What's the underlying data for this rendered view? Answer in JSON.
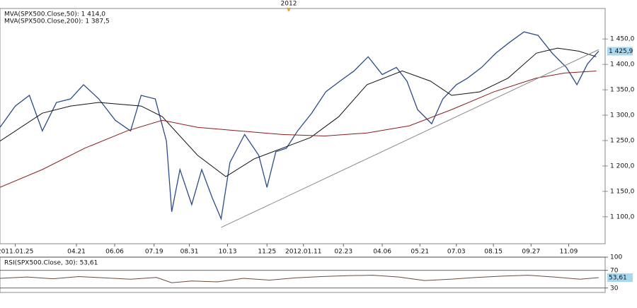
{
  "chart_data": [
    {
      "type": "line",
      "period_marker": {
        "label": "2012",
        "x": 46.5
      },
      "xlim": [
        -2.6,
        100.3
      ],
      "ylim": [
        1047,
        1510
      ],
      "xticks": [
        {
          "value": 0,
          "label": "2011.01.25"
        },
        {
          "value": 10.4,
          "label": "04.21"
        },
        {
          "value": 16.9,
          "label": "06.06"
        },
        {
          "value": 23.6,
          "label": "07.19"
        },
        {
          "value": 29.6,
          "label": "08.31"
        },
        {
          "value": 36.1,
          "label": "10.13"
        },
        {
          "value": 42.8,
          "label": "11.25"
        },
        {
          "value": 49.0,
          "label": "2012.01.11"
        },
        {
          "value": 55.8,
          "label": "02.23"
        },
        {
          "value": 62.4,
          "label": "04.06"
        },
        {
          "value": 68.8,
          "label": "05.21"
        },
        {
          "value": 75.0,
          "label": "07.03"
        },
        {
          "value": 81.3,
          "label": "08.15"
        },
        {
          "value": 87.7,
          "label": "09.27"
        },
        {
          "value": 94.1,
          "label": "11.09"
        }
      ],
      "yticks": [
        {
          "value": 1100,
          "label": "1 100,0"
        },
        {
          "value": 1150,
          "label": "1 150,0"
        },
        {
          "value": 1200,
          "label": "1 200,0"
        },
        {
          "value": 1250,
          "label": "1 250,0"
        },
        {
          "value": 1300,
          "label": "1 300,0"
        },
        {
          "value": 1350,
          "label": "1 350,0"
        },
        {
          "value": 1400,
          "label": "1 400,0"
        },
        {
          "value": 1450,
          "label": "1 450,0"
        }
      ],
      "last_price": {
        "value": 1425.9,
        "label": "1 425,9"
      },
      "series": [
        {
          "color": "#2b4c8c",
          "x": [
            -2.6,
            0,
            2.4,
            4.6,
            7,
            9.4,
            11.6,
            14.2,
            17,
            19.6,
            21.4,
            23.8,
            25.7,
            26.6,
            28,
            30,
            31.7,
            33.5,
            35,
            36.5,
            39,
            41.4,
            42.8,
            44.3,
            46.1,
            48,
            50.4,
            52.8,
            55.2,
            57.6,
            60,
            62.4,
            64.8,
            66.6,
            68.4,
            70.8,
            72.7,
            75,
            76.9,
            79.3,
            81.7,
            84,
            86.5,
            88.9,
            91.3,
            93.7,
            95.5,
            97.3,
            99.2
          ],
          "values": [
            1276,
            1318,
            1339,
            1269,
            1325,
            1332,
            1360,
            1332,
            1290,
            1269,
            1339,
            1332,
            1249,
            1110,
            1193,
            1124,
            1193,
            1137,
            1096,
            1207,
            1262,
            1221,
            1158,
            1228,
            1235,
            1269,
            1304,
            1346,
            1367,
            1387,
            1415,
            1380,
            1394,
            1367,
            1311,
            1283,
            1332,
            1360,
            1373,
            1394,
            1422,
            1443,
            1464,
            1457,
            1422,
            1394,
            1360,
            1401,
            1426
          ]
        },
        {
          "color": "#111111",
          "legend": "MVA(SPX500.Close,50): 1 414,0",
          "x": [
            -2.6,
            4.6,
            9.4,
            14.2,
            21.4,
            25,
            31,
            35.8,
            40.6,
            45.4,
            50.2,
            55,
            59.8,
            65.8,
            70.6,
            74.2,
            79,
            83.8,
            88.6,
            92.2,
            95.8,
            98.8
          ],
          "values": [
            1249,
            1304,
            1318,
            1325,
            1318,
            1297,
            1221,
            1179,
            1214,
            1235,
            1256,
            1297,
            1360,
            1387,
            1367,
            1339,
            1346,
            1373,
            1422,
            1432,
            1426,
            1415
          ]
        },
        {
          "color": "#8b1c1c",
          "legend": "MVA(SPX500.Close,200): 1 387,5",
          "x": [
            -2.6,
            4.6,
            11.8,
            19,
            25,
            31,
            38.2,
            45.4,
            52.6,
            59.8,
            67,
            74.2,
            81.4,
            88.6,
            93.4,
            98.8
          ],
          "values": [
            1158,
            1193,
            1235,
            1269,
            1290,
            1276,
            1269,
            1262,
            1259,
            1265,
            1279,
            1311,
            1346,
            1373,
            1383,
            1387
          ]
        },
        {
          "color": "#8a8a8a",
          "x": [
            35,
            99.2
          ],
          "values": [
            1079,
            1429
          ]
        }
      ]
    },
    {
      "type": "line",
      "title": "RSI(SPX500.Close, 30): 53,61",
      "xlim": [
        -2.6,
        100.3
      ],
      "ylim": [
        20,
        100
      ],
      "yticks": [
        30,
        70,
        100
      ],
      "last_value": {
        "value": 53.61,
        "label": "53,61"
      },
      "series": [
        {
          "color": "#6b4a3a",
          "x": [
            -2.6,
            2,
            6.4,
            10.8,
            15.2,
            19.6,
            24,
            26.6,
            30,
            34.4,
            38.8,
            43.2,
            47.6,
            52,
            56.4,
            60.8,
            65.2,
            69.6,
            74,
            78.4,
            82.8,
            87.2,
            91.6,
            96,
            99.2
          ],
          "values": [
            52,
            55,
            51,
            56,
            53,
            50,
            54,
            42,
            46,
            44,
            52,
            48,
            53,
            56,
            58,
            59,
            55,
            47,
            50,
            54,
            57,
            59,
            55,
            50,
            53.61
          ]
        }
      ]
    }
  ]
}
